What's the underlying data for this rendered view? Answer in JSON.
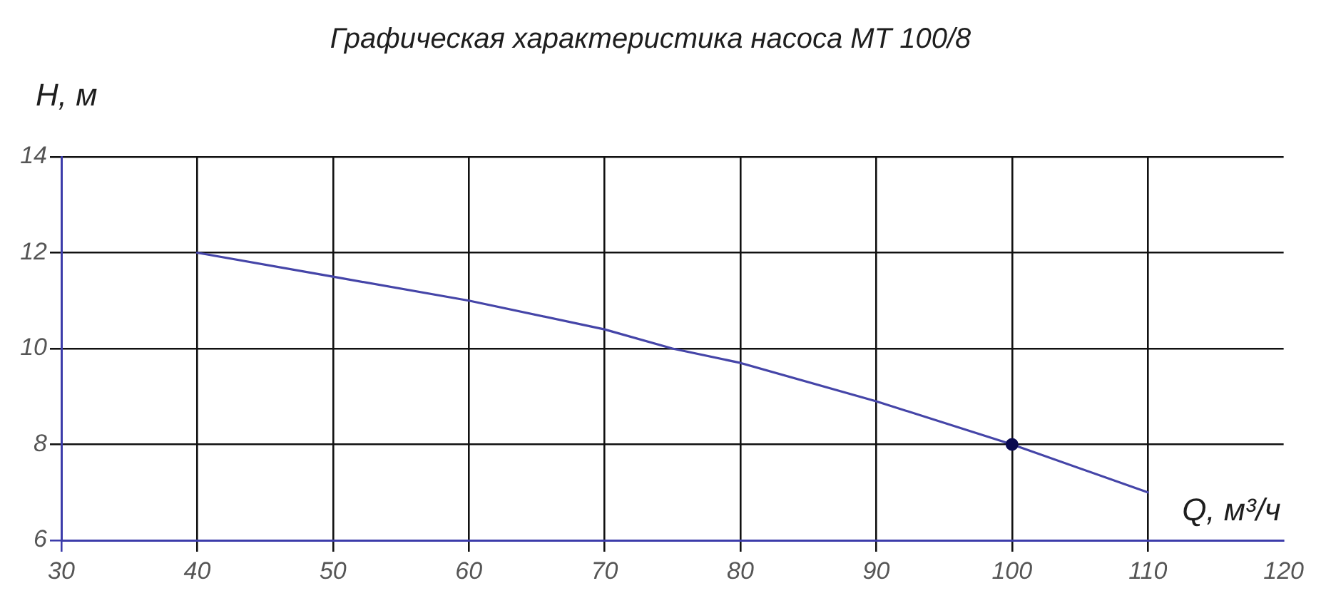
{
  "chart_data": {
    "type": "line",
    "title": "Графическая характеристика насоса МТ 100/8",
    "xlabel": "Q, м³/ч",
    "ylabel": "H, м",
    "x": [
      40,
      50,
      60,
      70,
      75,
      80,
      90,
      100,
      110
    ],
    "series": [
      {
        "color": "#4545a8",
        "values": [
          12,
          11.5,
          11.0,
          10.4,
          10,
          9.7,
          8.9,
          8,
          7
        ],
        "marker": "none"
      },
      {
        "type": "scatter",
        "x": [
          100
        ],
        "values": [
          8
        ],
        "color": "#0a0a50",
        "marker": "circle"
      }
    ],
    "xlim": [
      30,
      120
    ],
    "ylim": [
      6,
      14
    ],
    "xticks": [
      30,
      40,
      50,
      60,
      70,
      80,
      90,
      100,
      110,
      120
    ],
    "yticks": [
      6,
      8,
      10,
      12,
      14
    ],
    "grid": true,
    "legend": false
  }
}
